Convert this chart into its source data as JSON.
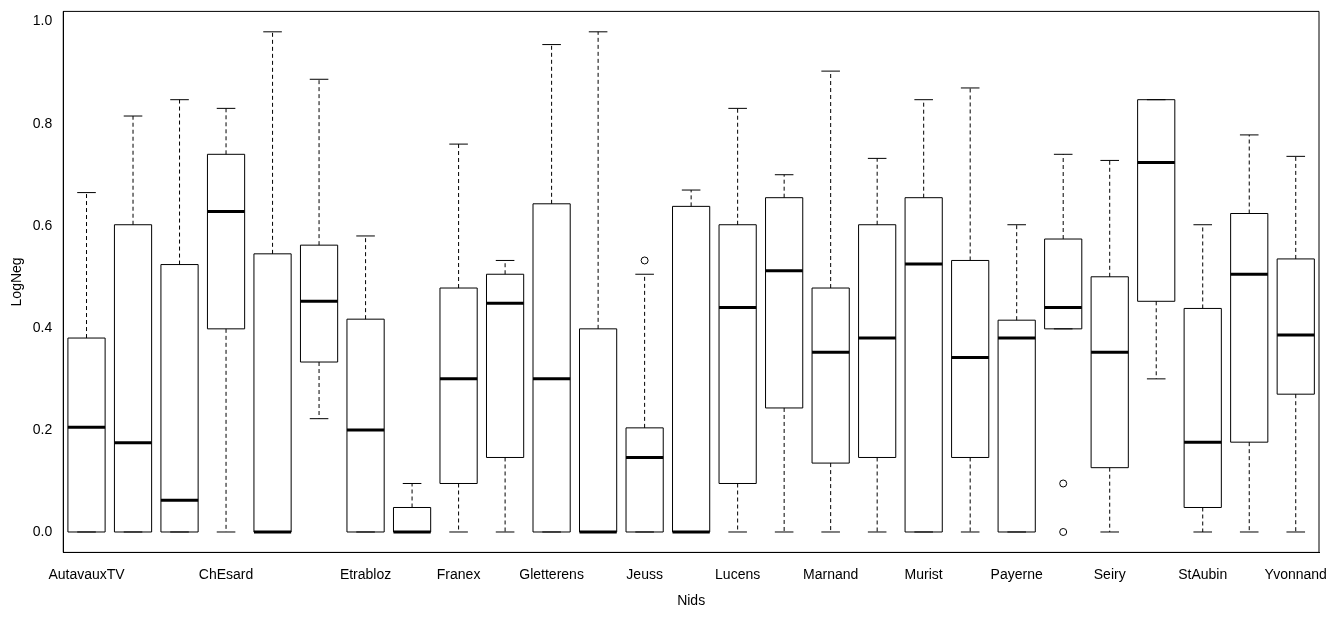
{
  "chart_data": {
    "type": "box",
    "xlabel": "Nids",
    "ylabel": "LogNeg",
    "categories": [
      "AutavauxTV",
      null,
      null,
      "ChEsard",
      null,
      null,
      "Etrabloz",
      null,
      "Franex",
      null,
      "Gletterens",
      null,
      "Jeuss",
      null,
      "Lucens",
      null,
      "Marnand",
      null,
      "Murist",
      null,
      "Payerne",
      null,
      "Seiry",
      null,
      "StAubin",
      null,
      "Yvonnand"
    ],
    "ylim": [
      -0.04,
      1.02
    ],
    "yticks": [
      {
        "value": 0,
        "label": "0.0"
      },
      0.2,
      0.4,
      0.6,
      0.8,
      {
        "value": 1,
        "label": "1.0"
      }
    ],
    "grid": false,
    "color": "#000000",
    "boxes": [
      {
        "low": 0,
        "q1": 0,
        "median": 0.205,
        "q3": 0.38,
        "high": 0.665
      },
      {
        "low": 0,
        "q1": 0,
        "median": 0.175,
        "q3": 0.602,
        "high": 0.815
      },
      {
        "low": 0,
        "q1": 0,
        "median": 0.062,
        "q3": 0.524,
        "high": 0.847
      },
      {
        "low": 0,
        "q1": 0.398,
        "median": 0.628,
        "q3": 0.74,
        "high": 0.83
      },
      {
        "low": 0,
        "q1": 0,
        "median": 0,
        "q3": 0.545,
        "high": 0.98
      },
      {
        "low": 0.222,
        "q1": 0.333,
        "median": 0.452,
        "q3": 0.562,
        "high": 0.887
      },
      {
        "low": 0,
        "q1": 0,
        "median": 0.2,
        "q3": 0.417,
        "high": 0.58
      },
      {
        "low": 0,
        "q1": 0,
        "median": 0,
        "q3": 0.048,
        "high": 0.095
      },
      {
        "low": 0,
        "q1": 0.095,
        "median": 0.3,
        "q3": 0.478,
        "high": 0.76
      },
      {
        "low": 0,
        "q1": 0.146,
        "median": 0.448,
        "q3": 0.505,
        "high": 0.532
      },
      {
        "low": 0,
        "q1": 0,
        "median": 0.3,
        "q3": 0.643,
        "high": 0.955
      },
      {
        "low": 0,
        "q1": 0,
        "median": 0,
        "q3": 0.398,
        "high": 0.98
      },
      {
        "low": 0,
        "q1": 0,
        "median": 0.146,
        "q3": 0.204,
        "high": 0.505,
        "outliers": [
          0.532
        ]
      },
      {
        "low": 0,
        "q1": 0,
        "median": 0,
        "q3": 0.638,
        "high": 0.67
      },
      {
        "low": 0,
        "q1": 0.095,
        "median": 0.44,
        "q3": 0.602,
        "high": 0.83
      },
      {
        "low": 0,
        "q1": 0.243,
        "median": 0.512,
        "q3": 0.655,
        "high": 0.7
      },
      {
        "low": 0,
        "q1": 0.135,
        "median": 0.352,
        "q3": 0.478,
        "high": 0.903
      },
      {
        "low": 0,
        "q1": 0.146,
        "median": 0.38,
        "q3": 0.602,
        "high": 0.732
      },
      {
        "low": 0,
        "q1": 0,
        "median": 0.525,
        "q3": 0.655,
        "high": 0.847
      },
      {
        "low": 0,
        "q1": 0.146,
        "median": 0.342,
        "q3": 0.532,
        "high": 0.87
      },
      {
        "low": 0,
        "q1": 0,
        "median": 0.38,
        "q3": 0.415,
        "high": 0.602
      },
      {
        "low": 0.398,
        "q1": 0.398,
        "median": 0.44,
        "q3": 0.574,
        "high": 0.74,
        "outliers": [
          0.095,
          0
        ]
      },
      {
        "low": 0,
        "q1": 0.126,
        "median": 0.352,
        "q3": 0.5,
        "high": 0.728
      },
      {
        "low": 0.3,
        "q1": 0.452,
        "median": 0.724,
        "q3": 0.847,
        "high": 0.847
      },
      {
        "low": 0,
        "q1": 0.048,
        "median": 0.176,
        "q3": 0.438,
        "high": 0.602
      },
      {
        "low": 0,
        "q1": 0.176,
        "median": 0.505,
        "q3": 0.624,
        "high": 0.778
      },
      {
        "low": 0,
        "q1": 0.27,
        "median": 0.386,
        "q3": 0.535,
        "high": 0.736
      }
    ]
  }
}
